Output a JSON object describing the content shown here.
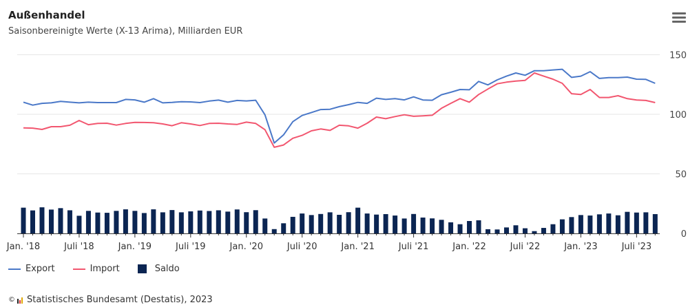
{
  "header": {
    "title": "Außenhandel",
    "subtitle": "Saisonbereinigte Werte (X-13 Arima), Milliarden EUR",
    "menu_icon": "hamburger-menu-icon"
  },
  "legend": [
    {
      "label": "Export",
      "color": "#4a78c8",
      "symbol": "line"
    },
    {
      "label": "Import",
      "color": "#f2566f",
      "symbol": "line"
    },
    {
      "label": "Saldo",
      "color": "#0b2552",
      "symbol": "square"
    }
  ],
  "credit": {
    "symbol": "©",
    "text": "Statistisches Bundesamt (Destatis), 2023"
  },
  "chart_data": {
    "type": "line+bar",
    "title": "Außenhandel",
    "subtitle": "Saisonbereinigte Werte (X-13 Arima), Milliarden EUR",
    "x_start": "2018-01",
    "x_end": "2023-09",
    "x_tick_labels": [
      "Jan. '18",
      "Juli '18",
      "Jan. '19",
      "Juli '19",
      "Jan. '20",
      "Juli '20",
      "Jan. '21",
      "Juli '21",
      "Jan. '22",
      "Juli '22",
      "Jan. '23",
      "Juli '23"
    ],
    "y_ticks": [
      0,
      50,
      100,
      150
    ],
    "ylim": [
      0,
      150
    ],
    "y_axis_side": "right",
    "grid": true,
    "legend_placement": "bottom-left",
    "series": [
      {
        "name": "Export",
        "type": "line",
        "color": "#4a78c8",
        "values": [
          110.2,
          107.7,
          109.2,
          109.6,
          110.8,
          110.2,
          109.6,
          110.2,
          109.8,
          109.8,
          109.8,
          112.5,
          112.1,
          110.2,
          113.1,
          109.6,
          110.0,
          110.6,
          110.4,
          109.8,
          111.1,
          111.9,
          110.2,
          111.6,
          111.2,
          111.8,
          99.6,
          75.9,
          82.7,
          93.8,
          99.0,
          101.5,
          104.0,
          104.2,
          106.4,
          108.1,
          110.0,
          109.2,
          113.5,
          112.5,
          113.1,
          112.1,
          114.6,
          112.0,
          111.8,
          116.4,
          118.5,
          120.8,
          120.6,
          127.6,
          124.7,
          128.9,
          132.0,
          134.7,
          132.8,
          136.6,
          136.6,
          137.2,
          137.8,
          131.0,
          132.0,
          135.8,
          130.1,
          130.8,
          130.8,
          131.2,
          129.5,
          129.3,
          126.0
        ]
      },
      {
        "name": "Import",
        "type": "line",
        "color": "#f2566f",
        "values": [
          88.6,
          88.4,
          87.3,
          89.6,
          89.6,
          90.8,
          94.8,
          91.3,
          92.3,
          92.5,
          90.9,
          92.3,
          93.2,
          93.1,
          92.9,
          91.9,
          90.4,
          92.9,
          91.9,
          90.6,
          92.3,
          92.5,
          91.9,
          91.5,
          93.4,
          92.3,
          87.1,
          72.3,
          74.2,
          79.9,
          82.3,
          86.1,
          87.7,
          86.5,
          90.8,
          90.3,
          88.4,
          92.5,
          97.7,
          96.3,
          98.1,
          99.6,
          98.3,
          98.7,
          99.2,
          105.0,
          109.2,
          113.1,
          110.2,
          116.6,
          121.2,
          125.6,
          127.0,
          127.9,
          128.5,
          134.7,
          132.0,
          129.5,
          126.0,
          117.3,
          116.6,
          120.8,
          114.1,
          114.1,
          115.6,
          113.1,
          112.0,
          111.6,
          109.8
        ]
      },
      {
        "name": "Saldo",
        "type": "bar",
        "color": "#0b2552",
        "values": [
          21.6,
          19.3,
          21.9,
          20.0,
          21.2,
          19.4,
          14.8,
          18.9,
          17.5,
          17.3,
          18.9,
          20.2,
          18.9,
          17.1,
          20.2,
          17.7,
          19.6,
          17.7,
          18.5,
          19.2,
          18.8,
          19.4,
          18.3,
          20.1,
          17.8,
          19.5,
          12.5,
          3.6,
          8.5,
          13.9,
          16.7,
          15.4,
          16.3,
          17.7,
          15.6,
          17.8,
          21.6,
          16.7,
          15.8,
          16.2,
          15.0,
          12.5,
          16.3,
          13.3,
          12.6,
          11.4,
          9.3,
          7.7,
          10.4,
          11.0,
          3.5,
          3.3,
          5.0,
          6.8,
          4.3,
          1.9,
          4.6,
          7.7,
          11.8,
          13.7,
          15.4,
          15.0,
          16.0,
          16.7,
          15.2,
          18.1,
          17.5,
          17.7,
          16.2
        ]
      }
    ]
  }
}
